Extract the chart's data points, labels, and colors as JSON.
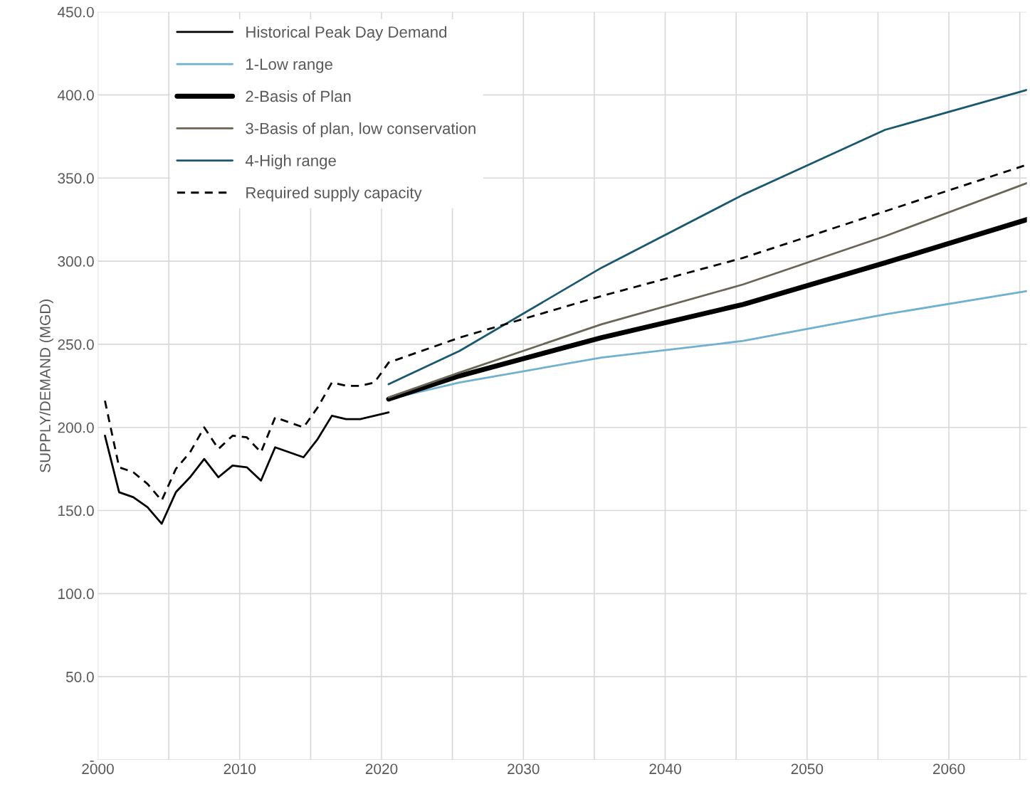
{
  "chart_data": {
    "type": "line",
    "ylabel": "SUPPLY/DEMAND (MGD)",
    "xlim": [
      2000,
      2065.5
    ],
    "xticks": [
      2000,
      {
        "value": 2005,
        "label": null
      },
      2010,
      {
        "value": 2015,
        "label": null
      },
      2020,
      {
        "value": 2025,
        "label": null
      },
      2030,
      {
        "value": 2035,
        "label": null
      },
      2040,
      {
        "value": 2045,
        "label": null
      },
      2050,
      {
        "value": 2055,
        "label": null
      },
      2060,
      {
        "value": 2065,
        "label": null
      }
    ],
    "ylim": [
      0,
      450
    ],
    "yticks": [
      {
        "value": 0,
        "label": "-"
      },
      {
        "value": 50,
        "label": "50.0"
      },
      {
        "value": 100,
        "label": "100.0"
      },
      {
        "value": 150,
        "label": "150.0"
      },
      {
        "value": 200,
        "label": "200.0"
      },
      {
        "value": 250,
        "label": "250.0"
      },
      {
        "value": 300,
        "label": "300.0"
      },
      {
        "value": 350,
        "label": "350.0"
      },
      {
        "value": 400,
        "label": "400.0"
      },
      {
        "value": 450,
        "label": "450.0"
      }
    ],
    "grid": true,
    "legend": "top left",
    "series": [
      {
        "name": "Historical Peak Day Demand",
        "color": "#000000",
        "line_style": "solid",
        "x": [
          2000.5,
          2001.5,
          2002.5,
          2003.5,
          2004.5,
          2005.5,
          2006.5,
          2007.5,
          2008.5,
          2009.5,
          2010.5,
          2011.5,
          2012.5,
          2013.5,
          2014.5,
          2015.5,
          2016.5,
          2017.5,
          2018.5,
          2019.5,
          2020.5
        ],
        "values": [
          195,
          161,
          158,
          152,
          142,
          161,
          170,
          181,
          170,
          177,
          176,
          168,
          188,
          185,
          182,
          193,
          207,
          205,
          205,
          207,
          209
        ]
      },
      {
        "name": "1-Low range",
        "color": "#70b0d0",
        "line_style": "solid",
        "x": [
          2020.5,
          2025.5,
          2035.5,
          2045.5,
          2055.5,
          2065.5
        ],
        "values": [
          217,
          227,
          242,
          252,
          268,
          282
        ]
      },
      {
        "name": "2-Basis of Plan",
        "color": "#000000",
        "line_style": "solid",
        "x": [
          2020.5,
          2025.5,
          2035.5,
          2045.5,
          2055.5,
          2065.5
        ],
        "values": [
          217,
          231,
          254,
          274,
          299,
          325
        ]
      },
      {
        "name": "3-Basis of plan, low conservation",
        "color": "#6b6557",
        "line_style": "solid",
        "x": [
          2020.5,
          2025.5,
          2035.5,
          2045.5,
          2055.5,
          2065.5
        ],
        "values": [
          218,
          233,
          262,
          286,
          315,
          347
        ]
      },
      {
        "name": "4-High range",
        "color": "#1a5870",
        "line_style": "solid",
        "x": [
          2020.5,
          2025.5,
          2035.5,
          2045.5,
          2055.5,
          2065.5
        ],
        "values": [
          226,
          246,
          296,
          340,
          379,
          403
        ]
      },
      {
        "name": "Required supply capacity",
        "color": "#000000",
        "line_style": "dashed",
        "x": [
          2000.5,
          2001.5,
          2002.5,
          2003.5,
          2004.5,
          2005.5,
          2006.5,
          2007.5,
          2008.5,
          2009.5,
          2010.5,
          2011.5,
          2012.5,
          2013.5,
          2014.5,
          2015.5,
          2016.5,
          2017.5,
          2018.5,
          2019.5,
          2020.5,
          2025.5,
          2035.5,
          2045.5,
          2055.5,
          2065.5
        ],
        "values": [
          216,
          176,
          173,
          166,
          156,
          175,
          185,
          200,
          187,
          195,
          194,
          185,
          206,
          203,
          200,
          212,
          227,
          225,
          225,
          227,
          239,
          254,
          279,
          302,
          330,
          358
        ]
      }
    ]
  }
}
